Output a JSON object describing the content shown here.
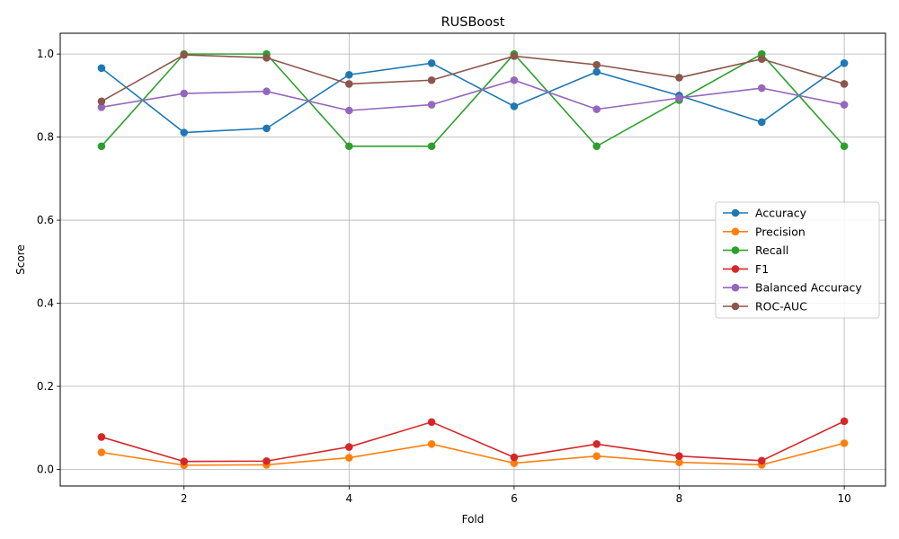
{
  "chart_data": {
    "type": "line",
    "title": "RUSBoost",
    "xlabel": "Fold",
    "ylabel": "Score",
    "x": [
      1,
      2,
      3,
      4,
      5,
      6,
      7,
      8,
      9,
      10
    ],
    "xlim": [
      0.5,
      10.5
    ],
    "ylim": [
      -0.04,
      1.05
    ],
    "xticks": [
      2,
      4,
      6,
      8,
      10
    ],
    "yticks": [
      0.0,
      0.2,
      0.4,
      0.6,
      0.8,
      1.0
    ],
    "xtick_labels": [
      "2",
      "4",
      "6",
      "8",
      "10"
    ],
    "ytick_labels": [
      "0.0",
      "0.2",
      "0.4",
      "0.6",
      "0.8",
      "1.0"
    ],
    "grid": true,
    "legend_position": "center-right",
    "series": [
      {
        "name": "Accuracy",
        "color": "#1f77b4",
        "values": [
          0.966,
          0.811,
          0.821,
          0.95,
          0.978,
          0.874,
          0.957,
          0.9,
          0.836,
          0.978
        ]
      },
      {
        "name": "Precision",
        "color": "#ff7f0e",
        "values": [
          0.041,
          0.01,
          0.011,
          0.028,
          0.061,
          0.015,
          0.032,
          0.017,
          0.011,
          0.063
        ]
      },
      {
        "name": "Recall",
        "color": "#2ca02c",
        "values": [
          0.778,
          1.0,
          1.0,
          0.778,
          0.778,
          1.0,
          0.778,
          0.889,
          1.0,
          0.778
        ]
      },
      {
        "name": "F1",
        "color": "#d62728",
        "values": [
          0.078,
          0.019,
          0.02,
          0.054,
          0.114,
          0.029,
          0.061,
          0.032,
          0.021,
          0.116
        ]
      },
      {
        "name": "Balanced Accuracy",
        "color": "#9467bd",
        "values": [
          0.872,
          0.905,
          0.91,
          0.864,
          0.878,
          0.937,
          0.867,
          0.894,
          0.918,
          0.878
        ]
      },
      {
        "name": "ROC-AUC",
        "color": "#8c564b",
        "values": [
          0.886,
          0.998,
          0.991,
          0.928,
          0.937,
          0.995,
          0.974,
          0.943,
          0.988,
          0.928
        ]
      }
    ]
  }
}
